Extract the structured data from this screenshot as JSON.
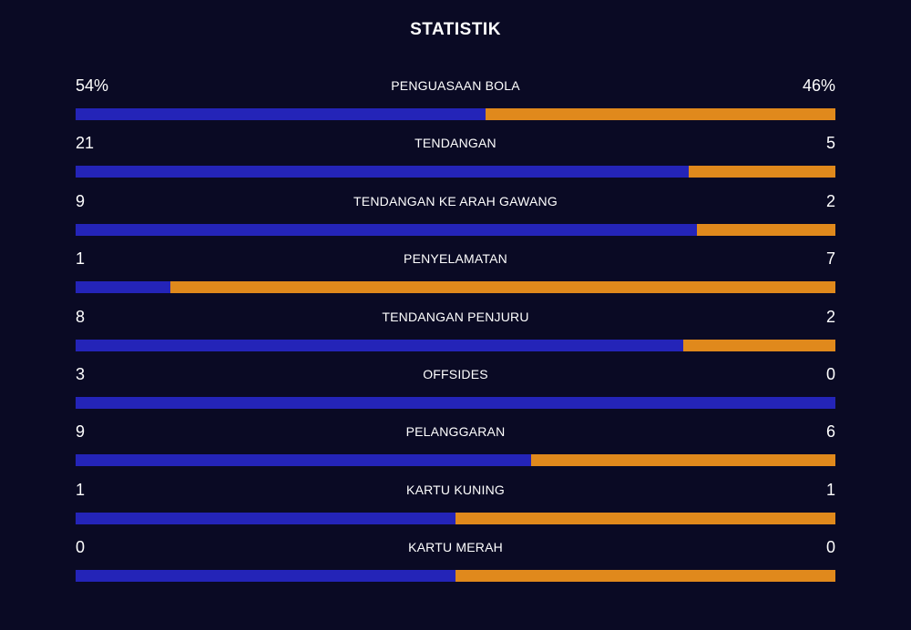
{
  "title": "STATISTIK",
  "colors": {
    "background": "#0a0a24",
    "home": "#2424b8",
    "away": "#e0891c"
  },
  "stats": [
    {
      "label": "PENGUASAAN BOLA",
      "home": "54%",
      "away": "46%",
      "home_share": 0.54
    },
    {
      "label": "TENDANGAN",
      "home": "21",
      "away": "5",
      "home_share": 0.807
    },
    {
      "label": "TENDANGAN KE ARAH GAWANG",
      "home": "9",
      "away": "2",
      "home_share": 0.818
    },
    {
      "label": "PENYELAMATAN",
      "home": "1",
      "away": "7",
      "home_share": 0.125
    },
    {
      "label": "TENDANGAN PENJURU",
      "home": "8",
      "away": "2",
      "home_share": 0.8
    },
    {
      "label": "OFFSIDES",
      "home": "3",
      "away": "0",
      "home_share": 1.0
    },
    {
      "label": "PELANGGARAN",
      "home": "9",
      "away": "6",
      "home_share": 0.6
    },
    {
      "label": "KARTU KUNING",
      "home": "1",
      "away": "1",
      "home_share": 0.5
    },
    {
      "label": "KARTU MERAH",
      "home": "0",
      "away": "0",
      "home_share": 0.5
    }
  ]
}
